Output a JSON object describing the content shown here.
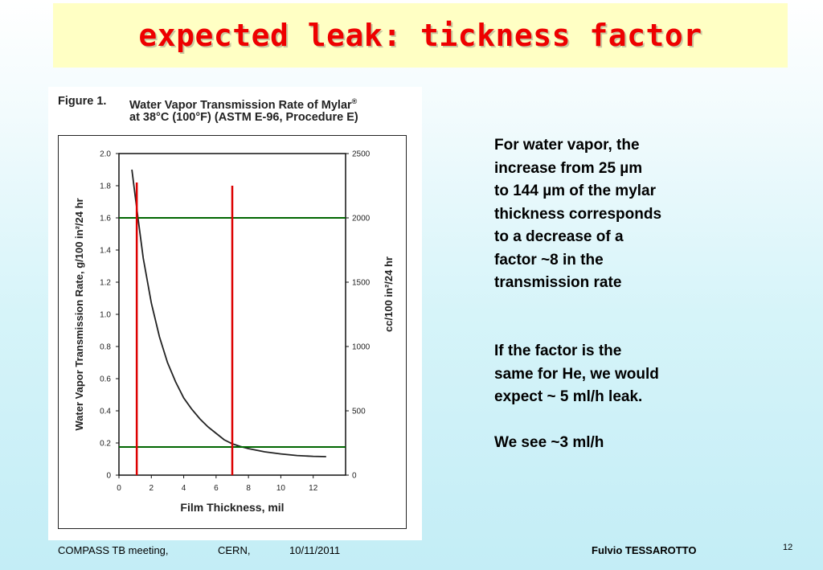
{
  "slide": {
    "title": "expected leak: tickness factor",
    "figure": {
      "number": "Figure 1.",
      "caption_line1": "Water Vapor Transmission Rate of Mylar",
      "caption_sup": "®",
      "caption_line2": "at 38°C (100°F) (ASTM E-96, Procedure E)"
    },
    "text": {
      "p1_lines": [
        "For water vapor, the",
        "increase from 25 µm",
        "to 144 µm of the mylar",
        "thickness corresponds",
        "to a decrease of a",
        "factor ~8 in the",
        "transmission rate"
      ],
      "p2_lines": [
        "If the factor is the",
        "same for He, we would",
        "expect ~ 5 ml/h leak."
      ],
      "p3": "We see ~3 ml/h"
    },
    "footer": {
      "meeting": "COMPASS TB meeting,",
      "location": "CERN,",
      "date": "10/11/2011",
      "author": "Fulvio  TESSAROTTO",
      "page": "12"
    }
  },
  "chart_data": {
    "type": "line",
    "title": "Water Vapor Transmission Rate of Mylar® at 38°C (100°F) (ASTM E-96, Procedure E)",
    "xlabel": "Film Thickness, mil",
    "ylabel": "Water Vapor Transmission Rate, g/100 in²/24 hr",
    "ylabel_right": "cc/100 in²/24 hr",
    "xlim": [
      0,
      14
    ],
    "ylim": [
      0,
      2.0
    ],
    "ylim_right": [
      0,
      2500
    ],
    "x_ticks": [
      "0",
      "2",
      "4",
      "6",
      "8",
      "10",
      "12"
    ],
    "y_ticks": [
      "0",
      "0.2",
      "0.4",
      "0.6",
      "0.8",
      "1.0",
      "1.2",
      "1.4",
      "1.6",
      "1.8",
      "2.0"
    ],
    "y_ticks_right": [
      "0",
      "500",
      "1000",
      "1500",
      "2000",
      "2500"
    ],
    "grid": false,
    "series": [
      {
        "x": [
          0.8,
          1.0,
          1.2,
          1.5,
          2.0,
          2.5,
          3.0,
          3.5,
          4.0,
          4.5,
          5.0,
          5.5,
          6.0,
          6.5,
          7.0,
          7.5,
          8.0,
          9.0,
          10.0,
          11.0,
          12.0,
          12.8
        ],
        "values": [
          1.9,
          1.74,
          1.58,
          1.35,
          1.07,
          0.86,
          0.7,
          0.58,
          0.48,
          0.41,
          0.35,
          0.3,
          0.26,
          0.22,
          0.195,
          0.178,
          0.165,
          0.145,
          0.132,
          0.122,
          0.117,
          0.115
        ],
        "color": "#222222"
      }
    ],
    "annotations": {
      "vertical_lines": [
        {
          "x": 1.1,
          "y_from": 0,
          "y_to": 1.82,
          "color": "#dd0000"
        },
        {
          "x": 7.0,
          "y_from": 0,
          "y_to": 1.8,
          "color": "#dd0000"
        }
      ],
      "horizontal_lines": [
        {
          "y": 1.6,
          "color": "#006600"
        },
        {
          "y": 0.175,
          "color": "#006600"
        }
      ]
    }
  }
}
